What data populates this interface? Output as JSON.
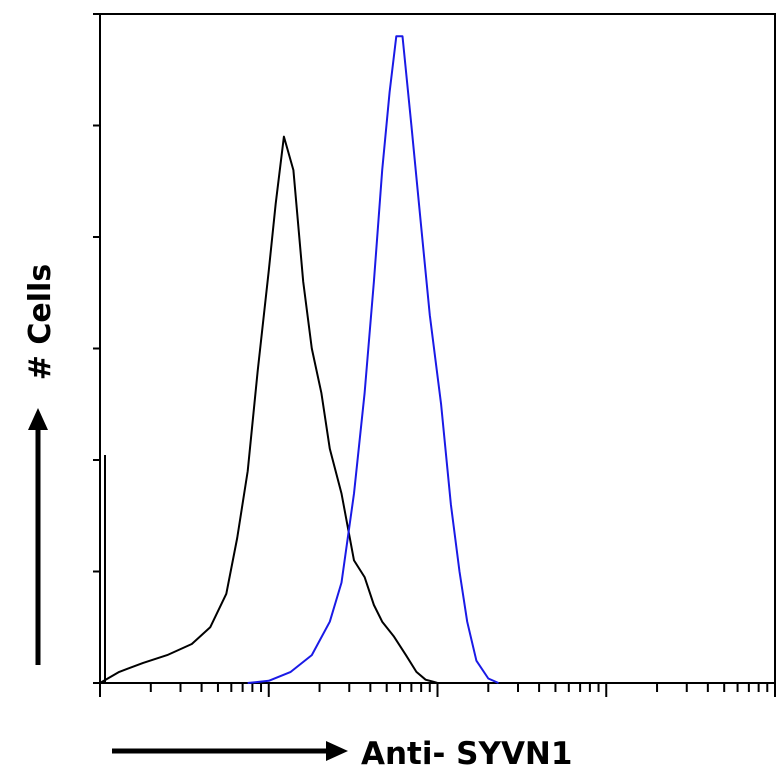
{
  "chart_data": {
    "type": "line",
    "title": "",
    "xlabel": "Anti- SYVN1",
    "ylabel": "# Cells",
    "x_scale": "log",
    "xlim": [
      1,
      10000
    ],
    "ylim": [
      0,
      6
    ],
    "y_ticks": [
      0,
      1,
      2,
      3,
      4,
      5,
      6
    ],
    "y_tick_labels": [],
    "x_tick_labels": [],
    "legend": "none",
    "grid": false,
    "series": [
      {
        "color": "#000000",
        "x": [
          1.0,
          1.3,
          1.8,
          2.5,
          3.5,
          4.5,
          5.6,
          6.5,
          7.5,
          8.6,
          10.0,
          11.0,
          12.3,
          14.0,
          16.0,
          18.0,
          20.5,
          23.0,
          27.0,
          32.0,
          37.0,
          42.0,
          47.0,
          55.0,
          65.0,
          75.0,
          85.0,
          95.0,
          100.0,
          112.0
        ],
        "y": [
          0.0,
          0.1,
          0.18,
          0.25,
          0.35,
          0.5,
          0.8,
          1.3,
          1.9,
          2.8,
          3.7,
          4.3,
          4.9,
          4.6,
          3.6,
          3.0,
          2.6,
          2.1,
          1.7,
          1.1,
          0.95,
          0.7,
          0.55,
          0.42,
          0.25,
          0.1,
          0.03,
          0.01,
          0.0,
          0.0
        ]
      },
      {
        "color": "#1a1ae6",
        "x": [
          7.5,
          10.0,
          13.5,
          18.0,
          23.0,
          27.0,
          32.0,
          37.0,
          42.0,
          47.0,
          52.0,
          57.0,
          62.0,
          70.0,
          80.0,
          90.0,
          105.0,
          120.0,
          135.0,
          150.0,
          170.0,
          200.0,
          230.0
        ],
        "y": [
          0.0,
          0.02,
          0.1,
          0.25,
          0.55,
          0.9,
          1.7,
          2.6,
          3.6,
          4.6,
          5.3,
          5.8,
          5.8,
          5.0,
          4.1,
          3.3,
          2.5,
          1.6,
          1.0,
          0.55,
          0.2,
          0.04,
          0.0
        ]
      }
    ]
  }
}
